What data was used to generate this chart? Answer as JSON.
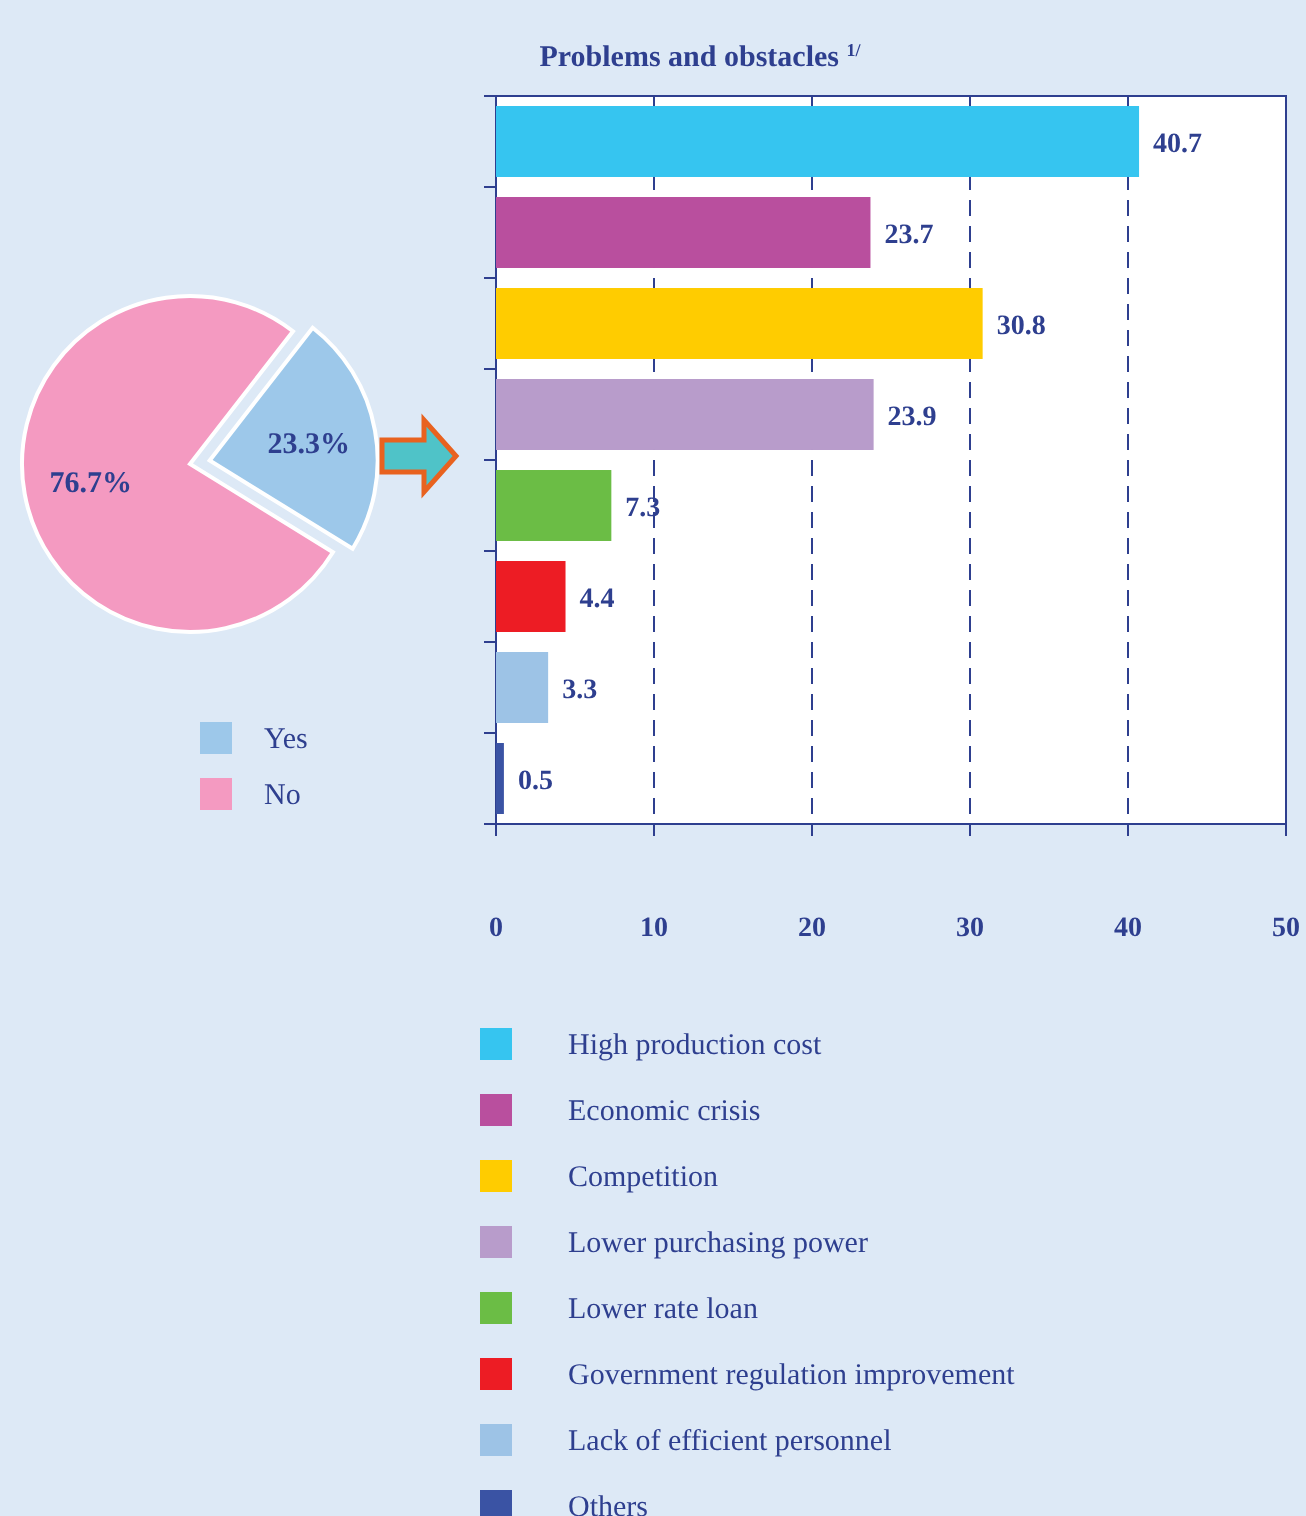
{
  "chart_data": [
    {
      "type": "pie",
      "categories": [
        "Yes",
        "No"
      ],
      "values": [
        23.3,
        76.7
      ],
      "colors": [
        "#9dc8ea",
        "#f49ac1"
      ],
      "value_labels": [
        "23.3%",
        "76.7%"
      ],
      "legend": "bottom"
    },
    {
      "type": "bar",
      "orientation": "horizontal",
      "title": "Problems and obstacles $^{1/}$",
      "categories": [
        null
      ],
      "series": [
        {
          "name": "High production cost",
          "color": "#36c5f0",
          "values": [
            40.7
          ]
        },
        {
          "name": "Economic crisis",
          "color": "#b94f9e",
          "values": [
            23.7
          ]
        },
        {
          "name": "Competition",
          "color": "#ffcc00",
          "values": [
            30.8
          ]
        },
        {
          "name": "Lower purchasing power",
          "color": "#b89ccb",
          "values": [
            23.9
          ]
        },
        {
          "name": "Lower rate loan",
          "color": "#6bbd45",
          "values": [
            7.3
          ]
        },
        {
          "name": "Government regulation improvement",
          "color": "#ed1c24",
          "values": [
            4.4
          ]
        },
        {
          "name": "Lack of efficient personnel",
          "color": "#9dc3e6",
          "values": [
            3.3
          ]
        },
        {
          "name": "Others",
          "color": "#3a53a4",
          "values": [
            0.5
          ]
        }
      ],
      "xlim": [
        0,
        50
      ],
      "xticks": [
        0,
        10,
        20,
        30,
        40,
        50
      ],
      "grid": "x",
      "data_labels": true,
      "legend": "bottom"
    }
  ]
}
